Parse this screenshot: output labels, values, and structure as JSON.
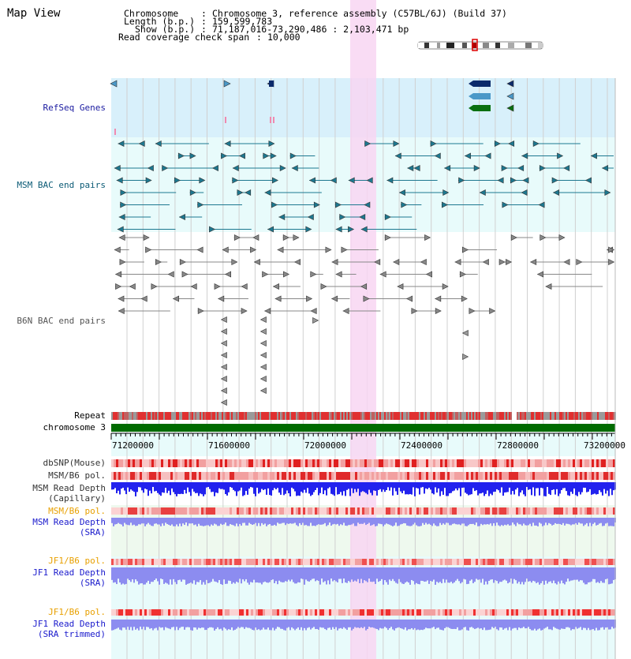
{
  "app": {
    "title": "Map View"
  },
  "header": {
    "chromosome_label": "Chromosome",
    "chromosome_value": "Chromosome 3, reference assembly (C57BL/6J) (Build 37)",
    "length_label": "Length (b.p.)",
    "length_value": "159,599,783",
    "show_label": "Show (b.p.)",
    "show_value": "71,187,016-73,290,486 : 2,103,471 bp",
    "read_cov_label": "Read coverage check span",
    "read_cov_value": "10,000"
  },
  "tracks": {
    "refseq": "RefSeq Genes",
    "msm_bac": "MSM BAC end pairs",
    "b6n_bac": "B6N BAC end pairs",
    "repeat": "Repeat",
    "chromosome": "chromosome 3",
    "dbsnp": "dbSNP(Mouse)",
    "msm_b6_pol_1": "MSM/B6 pol.",
    "msm_read_depth_cap_1": "MSM Read Depth",
    "msm_read_depth_cap_2": "(Capillary)",
    "msm_b6_pol_2": "MSM/B6 pol.",
    "msm_read_depth_sra_1": "MSM Read Depth",
    "msm_read_depth_sra_2": "(SRA)",
    "jf1_b6_pol_1": "JF1/B6 pol.",
    "jf1_read_depth_sra_1": "JF1 Read Depth",
    "jf1_read_depth_sra_2": "(SRA)",
    "jf1_b6_pol_2": "JF1/B6 pol.",
    "jf1_read_depth_trim_1": "JF1 Read Depth",
    "jf1_read_depth_trim_2": "(SRA trimmed)"
  },
  "axis": {
    "ticks": [
      "71200000",
      "71600000",
      "72000000",
      "72400000",
      "72800000",
      "73200000"
    ]
  },
  "colors": {
    "refseq_label": "#1a1aa0",
    "msm_label": "#0a5a75",
    "b6n_label": "#555555",
    "pol_label": "#e8a000",
    "depth_label": "#1a1acc",
    "refseq_bg": "#d8f0fb",
    "track_bg": "#e8fbfb",
    "highlight": "#f8d6f2",
    "chromosome_bar": "#006b00",
    "gene_navy": "#0b2a6b",
    "gene_blue": "#4a98c8",
    "gene_green": "#0a7010",
    "depth_blue": "#2222ee",
    "depth_light": "#8c8cf0"
  }
}
